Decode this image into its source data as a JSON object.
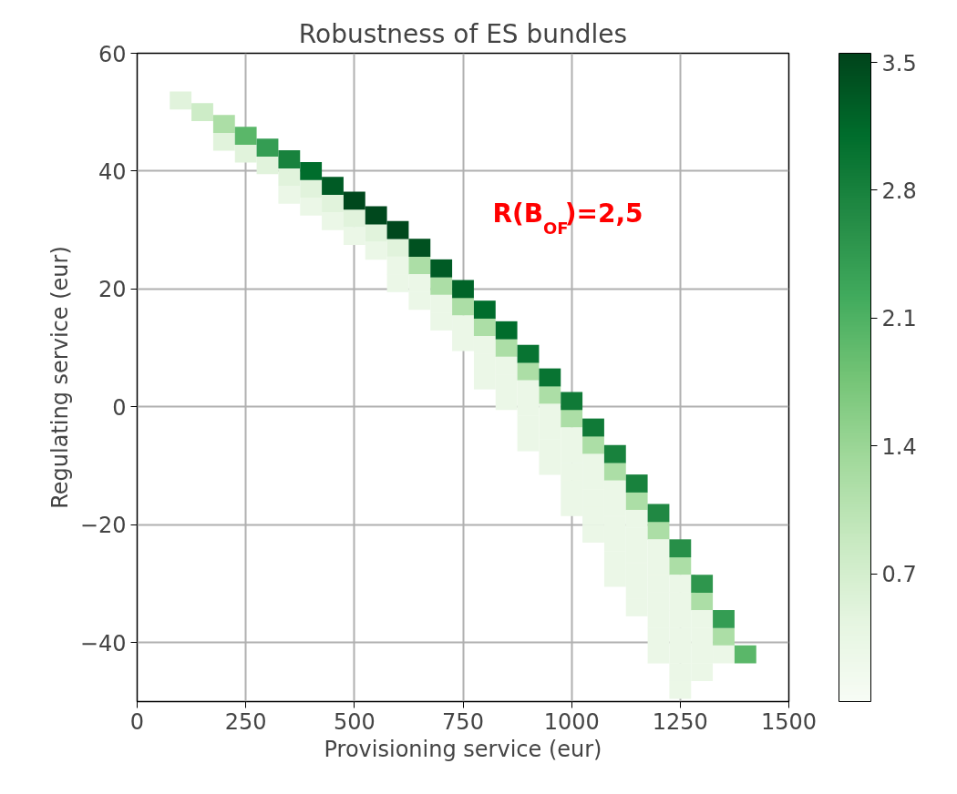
{
  "chart_data": {
    "type": "scatter",
    "title": "Robustness of ES bundles",
    "xlabel": "Provisioning service (eur)",
    "ylabel": "Regulating service (eur)",
    "xlim": [
      0,
      1500
    ],
    "ylim": [
      -50,
      60
    ],
    "xticks": [
      0,
      250,
      500,
      750,
      1000,
      1250,
      1500
    ],
    "yticks": [
      -40,
      -20,
      0,
      20,
      40,
      60
    ],
    "grid": true,
    "marker": "square",
    "clim": [
      0,
      3.55
    ],
    "cticks": [
      0.7,
      1.4,
      2.1,
      2.8,
      3.5
    ],
    "annotations": [
      "R(B$_{OF}$)=2,5"
    ],
    "series": [
      {
        "x": [
          200,
          250,
          300,
          350,
          350,
          400,
          400,
          450,
          450,
          500,
          500,
          550,
          550,
          600,
          600,
          600,
          650,
          650,
          650,
          700,
          700,
          700,
          750,
          750,
          750,
          800,
          800,
          800,
          800,
          850,
          850,
          850,
          850,
          900,
          900,
          900,
          900,
          900,
          950,
          950,
          950,
          950,
          950,
          1000,
          1000,
          1000,
          1000,
          1000,
          1000,
          1050,
          1050,
          1050,
          1050,
          1050,
          1050,
          1100,
          1100,
          1100,
          1100,
          1100,
          1100,
          1100,
          1150,
          1150,
          1150,
          1150,
          1150,
          1150,
          1150,
          1200,
          1200,
          1200,
          1200,
          1200,
          1200,
          1200,
          1200,
          1250,
          1250,
          1250,
          1250,
          1250,
          1250,
          1250,
          1250,
          1300,
          1300,
          1300,
          1300,
          1300,
          1350,
          1350,
          100,
          150,
          200,
          250,
          300,
          350,
          400,
          450,
          500,
          550,
          600,
          650,
          700,
          750,
          800,
          850,
          900,
          950,
          1000,
          1050,
          1100,
          1150,
          1200,
          1250,
          1300,
          1350,
          1400
        ],
        "values": [
          45,
          43,
          41,
          39,
          36,
          37,
          34,
          34.5,
          31.5,
          32,
          29,
          29.5,
          26.5,
          27,
          24,
          21,
          24,
          21,
          18,
          20.5,
          17.5,
          14.5,
          17,
          14,
          11,
          13.5,
          10.5,
          7.5,
          4.5,
          10,
          7,
          4,
          1,
          6,
          3,
          0,
          -3,
          -6,
          2,
          -1,
          -4,
          -7,
          -10,
          -2,
          -5,
          -8,
          -11,
          -14,
          -17,
          -6.5,
          -9.5,
          -12.5,
          -15.5,
          -18.5,
          -21.5,
          -11,
          -14,
          -17,
          -20,
          -23,
          -26,
          -29,
          -16,
          -19,
          -22,
          -25,
          -28,
          -31,
          -34,
          -21,
          -24,
          -27,
          -30,
          -33,
          -36,
          -39,
          -42,
          -27,
          -30,
          -33,
          -36,
          -39,
          -42,
          -45,
          -48,
          -33,
          -36,
          -39,
          -42,
          -45,
          -39,
          -42,
          52,
          50,
          48,
          46,
          44,
          42,
          40,
          37.5,
          35,
          32.5,
          30,
          27,
          23.5,
          20,
          16.5,
          13,
          9,
          5,
          1,
          -3.5,
          -8,
          -13,
          -18,
          -24,
          -30,
          -36,
          -42
        ],
        "cvalues": [
          0.5,
          0.5,
          0.5,
          0.5,
          0.3,
          0.5,
          0.3,
          0.5,
          0.3,
          0.5,
          0.3,
          0.5,
          0.3,
          0.5,
          0.3,
          0.3,
          1.2,
          0.3,
          0.3,
          1.2,
          0.3,
          0.3,
          1.2,
          0.3,
          0.3,
          1.2,
          0.3,
          0.3,
          0.3,
          1.2,
          0.3,
          0.3,
          0.3,
          1.2,
          0.3,
          0.3,
          0.3,
          0.3,
          1.2,
          0.3,
          0.3,
          0.3,
          0.3,
          1.2,
          0.3,
          0.3,
          0.3,
          0.3,
          0.3,
          1.2,
          0.3,
          0.3,
          0.3,
          0.3,
          0.3,
          1.2,
          0.3,
          0.3,
          0.3,
          0.3,
          0.3,
          0.3,
          1.2,
          0.3,
          0.3,
          0.3,
          0.3,
          0.3,
          0.3,
          1.2,
          0.3,
          0.3,
          0.3,
          0.3,
          0.3,
          0.3,
          0.3,
          1.2,
          0.3,
          0.3,
          0.3,
          0.3,
          0.3,
          0.3,
          0.3,
          1.2,
          0.3,
          0.3,
          0.3,
          0.3,
          1.2,
          0.3,
          0.5,
          0.8,
          1.2,
          2.0,
          2.4,
          2.8,
          3.1,
          3.3,
          3.5,
          3.5,
          3.5,
          3.4,
          3.3,
          3.2,
          3.1,
          3.1,
          3.0,
          3.0,
          2.9,
          2.9,
          2.8,
          2.8,
          2.7,
          2.6,
          2.5,
          2.4,
          2.0
        ]
      }
    ]
  }
}
